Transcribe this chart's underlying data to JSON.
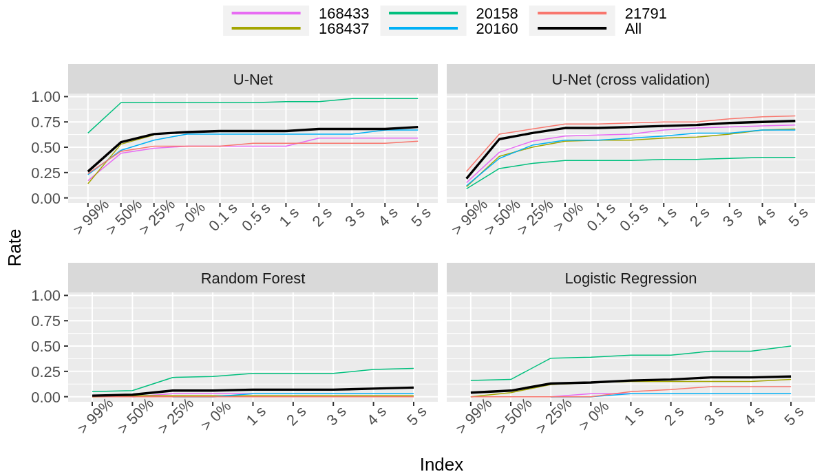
{
  "chart_data": [
    {
      "type": "line",
      "title": "U-Net",
      "ylabel": "Rate",
      "categories": [
        "> 99%",
        "> 50%",
        "> 25%",
        "> 0%",
        "0.1 s",
        "0.5 s",
        "1 s",
        "2 s",
        "3 s",
        "4 s",
        "5 s"
      ],
      "series": [
        {
          "name": "168433",
          "color": "#e76bf3",
          "values": [
            0.17,
            0.44,
            0.49,
            0.51,
            0.51,
            0.51,
            0.51,
            0.59,
            0.59,
            0.59,
            0.59
          ]
        },
        {
          "name": "168437",
          "color": "#a3a500",
          "values": [
            0.14,
            0.53,
            0.62,
            null,
            null,
            null,
            null,
            null,
            null,
            null,
            null
          ]
        },
        {
          "name": "20158",
          "color": "#00bf7d",
          "values": [
            0.64,
            0.94,
            0.94,
            0.94,
            0.94,
            0.94,
            0.95,
            0.95,
            0.98,
            0.98,
            0.98
          ]
        },
        {
          "name": "20160",
          "color": "#00b0f6",
          "values": [
            0.23,
            0.47,
            0.57,
            0.63,
            0.63,
            0.63,
            0.63,
            0.63,
            0.63,
            0.67,
            0.67
          ]
        },
        {
          "name": "21791",
          "color": "#f8766d",
          "values": [
            0.24,
            0.46,
            0.51,
            0.51,
            0.51,
            0.54,
            0.54,
            0.54,
            0.54,
            0.54,
            0.56
          ]
        },
        {
          "name": "All",
          "color": "#000000",
          "values": [
            0.26,
            0.55,
            0.63,
            0.65,
            0.66,
            0.66,
            0.66,
            0.68,
            0.68,
            0.68,
            0.7
          ]
        }
      ],
      "ylim": [
        -0.05,
        1.03
      ],
      "yticks": [
        {
          "value": 0,
          "label": "0.00"
        },
        {
          "value": 0.25,
          "label": "0.25"
        },
        {
          "value": 0.5,
          "label": "0.50"
        },
        {
          "value": 0.75,
          "label": "0.75"
        },
        {
          "value": 1,
          "label": "1.00"
        }
      ],
      "grid": true,
      "legend": "top"
    },
    {
      "type": "line",
      "title": "U-Net (cross validation)",
      "categories": [
        "> 99%",
        "> 50%",
        "> 25%",
        "> 0%",
        "0.1 s",
        "0.5 s",
        "1 s",
        "2 s",
        "3 s",
        "4 s",
        "5 s"
      ],
      "series": [
        {
          "name": "168433",
          "color": "#e76bf3",
          "values": [
            0.15,
            0.45,
            0.56,
            0.61,
            0.62,
            0.63,
            0.67,
            0.69,
            0.7,
            0.71,
            0.72
          ]
        },
        {
          "name": "168437",
          "color": "#a3a500",
          "values": [
            0.11,
            0.41,
            0.5,
            0.56,
            0.57,
            0.57,
            0.59,
            0.6,
            0.63,
            0.67,
            0.68
          ]
        },
        {
          "name": "20158",
          "color": "#00bf7d",
          "values": [
            0.09,
            0.29,
            0.34,
            0.37,
            0.37,
            0.37,
            0.38,
            0.38,
            0.39,
            0.4,
            0.4
          ]
        },
        {
          "name": "20160",
          "color": "#00b0f6",
          "values": [
            0.12,
            0.39,
            0.52,
            0.57,
            0.57,
            0.59,
            0.61,
            0.64,
            0.64,
            0.67,
            0.67
          ]
        },
        {
          "name": "21791",
          "color": "#f8766d",
          "values": [
            0.26,
            0.63,
            0.68,
            0.73,
            0.73,
            0.74,
            0.75,
            0.75,
            0.78,
            0.8,
            0.81
          ]
        },
        {
          "name": "All",
          "color": "#000000",
          "values": [
            0.19,
            0.58,
            0.64,
            0.69,
            0.69,
            0.7,
            0.71,
            0.72,
            0.74,
            0.75,
            0.76
          ]
        }
      ],
      "ylim": [
        -0.05,
        1.03
      ],
      "yticks": [
        0,
        0.25,
        0.5,
        0.75,
        1
      ],
      "grid": true,
      "legend": "top",
      "tick_labels": "x"
    },
    {
      "type": "line",
      "title": "Random Forest",
      "xlabel": "Index",
      "categories": [
        "> 99%",
        "> 50%",
        "> 25%",
        "> 0%",
        "1 s",
        "2 s",
        "3 s",
        "4 s",
        "5 s"
      ],
      "series": [
        {
          "name": "168433",
          "color": "#e76bf3",
          "values": [
            null,
            0,
            0.03,
            0.03,
            0.03,
            null,
            null,
            null,
            null
          ]
        },
        {
          "name": "168437",
          "color": "#a3a500",
          "values": [
            0,
            0.01,
            0.01,
            0.01,
            0.01,
            0.01,
            0.01,
            0.01,
            0.01
          ]
        },
        {
          "name": "20158",
          "color": "#00bf7d",
          "values": [
            0.05,
            0.06,
            0.19,
            0.2,
            0.23,
            0.23,
            0.23,
            0.27,
            0.28
          ]
        },
        {
          "name": "20160",
          "color": "#00b0f6",
          "values": [
            null,
            null,
            0,
            0,
            0.03,
            0.03,
            0.03,
            0.03,
            0.03
          ]
        },
        {
          "name": "21791",
          "color": "#f8766d",
          "values": [
            0,
            0,
            0,
            0,
            0,
            0,
            0,
            0,
            0
          ]
        },
        {
          "name": "All",
          "color": "#000000",
          "values": [
            0.01,
            0.02,
            0.06,
            0.06,
            0.07,
            0.07,
            0.07,
            0.08,
            0.09
          ]
        }
      ],
      "ylim": [
        -0.05,
        1.03
      ],
      "yticks": [
        {
          "value": 0,
          "label": "0.00"
        },
        {
          "value": 0.25,
          "label": "0.25"
        },
        {
          "value": 0.5,
          "label": "0.50"
        },
        {
          "value": 0.75,
          "label": "0.75"
        },
        {
          "value": 1,
          "label": "1.00"
        }
      ],
      "grid": true,
      "legend": "top"
    },
    {
      "type": "line",
      "title": "Logistic Regression",
      "categories": [
        "> 99%",
        "> 50%",
        "> 25%",
        "> 0%",
        "1 s",
        "2 s",
        "3 s",
        "4 s",
        "5 s"
      ],
      "series": [
        {
          "name": "168433",
          "color": "#e76bf3",
          "values": [
            null,
            null,
            0,
            0.03,
            0.03,
            null,
            null,
            null,
            null
          ]
        },
        {
          "name": "168437",
          "color": "#a3a500",
          "values": [
            0,
            0.04,
            0.12,
            0.14,
            0.15,
            0.15,
            0.15,
            0.15,
            0.17
          ]
        },
        {
          "name": "20158",
          "color": "#00bf7d",
          "values": [
            0.16,
            0.17,
            0.38,
            0.39,
            0.41,
            0.41,
            0.45,
            0.45,
            0.5
          ]
        },
        {
          "name": "20160",
          "color": "#00b0f6",
          "values": [
            null,
            null,
            0,
            0,
            0.03,
            0.03,
            0.03,
            0.03,
            0.03
          ]
        },
        {
          "name": "21791",
          "color": "#f8766d",
          "values": [
            0,
            0,
            0,
            0,
            0.05,
            0.07,
            0.1,
            0.1,
            0.1
          ]
        },
        {
          "name": "All",
          "color": "#000000",
          "values": [
            0.04,
            0.06,
            0.13,
            0.14,
            0.16,
            0.17,
            0.19,
            0.19,
            0.2
          ]
        }
      ],
      "ylim": [
        -0.05,
        1.03
      ],
      "yticks": [
        0,
        0.25,
        0.5,
        0.75,
        1
      ],
      "grid": true,
      "legend": "top",
      "tick_labels": "x"
    }
  ]
}
